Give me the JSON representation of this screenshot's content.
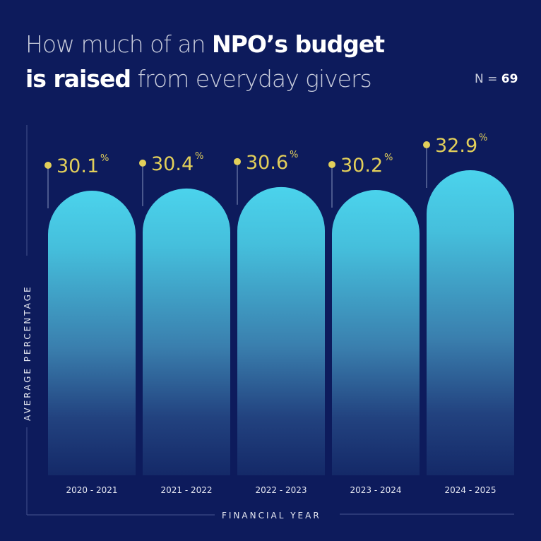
{
  "title": {
    "part1": "How much of an ",
    "part1_bold": "NPO’s budget",
    "part2_bold": "is raised",
    "part2": " from everyday givers"
  },
  "sample": {
    "prefix": "N = ",
    "value": "69"
  },
  "colors": {
    "background": "#0d1b5c",
    "bar_top": "#4bd0ea",
    "bar_bottom": "#14286a",
    "value_label": "#e2cf5a",
    "axis_line": "#3c4a86"
  },
  "chart_data": {
    "type": "bar",
    "title": "How much of an NPO’s budget is raised from everyday givers",
    "xlabel": "FINANCIAL YEAR",
    "ylabel": "AVERAGE PERCENTAGE",
    "categories": [
      "2020 - 2021",
      "2021 - 2022",
      "2022 - 2023",
      "2023 - 2024",
      "2024 - 2025"
    ],
    "values": [
      30.1,
      30.4,
      30.6,
      30.2,
      32.9
    ],
    "value_labels": [
      "30.1",
      "30.4",
      "30.6",
      "30.2",
      "32.9"
    ],
    "unit": "%",
    "ylim": [
      0,
      40
    ],
    "grid": false,
    "legend": "none",
    "annotation": "N = 69"
  }
}
